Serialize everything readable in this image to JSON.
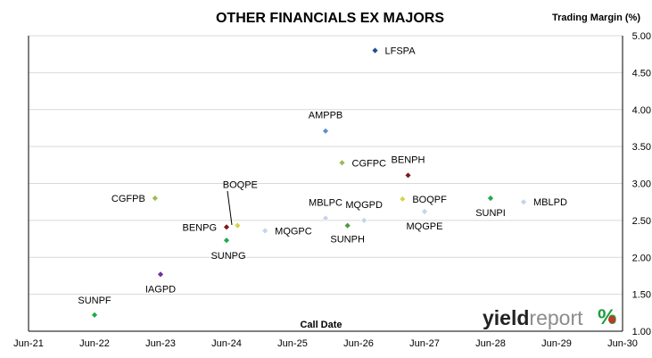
{
  "chart_data": {
    "type": "scatter",
    "title": "OTHER FINANCIALS EX MAJORS",
    "ylabel": "Trading Margin (%)",
    "xlabel": "Call Date",
    "x_ticks": [
      "Jun-21",
      "Jun-22",
      "Jun-23",
      "Jun-24",
      "Jun-25",
      "Jun-26",
      "Jun-27",
      "Jun-28",
      "Jun-29",
      "Jun-30"
    ],
    "xlim": [
      "2021-06",
      "2030-06"
    ],
    "ylim": [
      1.0,
      5.0
    ],
    "y_ticks": [
      "1.00",
      "1.50",
      "2.00",
      "2.50",
      "3.00",
      "3.50",
      "4.00",
      "4.50",
      "5.00"
    ],
    "grid": "horizontal",
    "legend": "none",
    "points": [
      {
        "name": "SUNPF",
        "x": "2022-06",
        "y": 1.22,
        "color": "#1faa4b"
      },
      {
        "name": "IAGPD",
        "x": "2023-06",
        "y": 1.77,
        "color": "#7030a0"
      },
      {
        "name": "CGFPB",
        "x": "2023-05",
        "y": 2.8,
        "color": "#9bbb59"
      },
      {
        "name": "BENPG",
        "x": "2024-06",
        "y": 2.41,
        "color": "#7b1c1c"
      },
      {
        "name": "SUNPG",
        "x": "2024-06",
        "y": 2.23,
        "color": "#1faa4b"
      },
      {
        "name": "BOQPE",
        "x": "2024-08",
        "y": 2.43,
        "color": "#d4d44a"
      },
      {
        "name": "MQGPC",
        "x": "2025-01",
        "y": 2.36,
        "color": "#c5d3ef"
      },
      {
        "name": "MBLPC",
        "x": "2025-12",
        "y": 2.53,
        "color": "#c5d3ef"
      },
      {
        "name": "AMPPB",
        "x": "2025-12",
        "y": 3.71,
        "color": "#5b8fd1"
      },
      {
        "name": "SUNPH",
        "x": "2026-04",
        "y": 2.43,
        "color": "#4f9a3c"
      },
      {
        "name": "MQGPD",
        "x": "2026-07",
        "y": 2.5,
        "color": "#c5d3ef"
      },
      {
        "name": "CGFPC",
        "x": "2026-03",
        "y": 3.28,
        "color": "#9bbb59"
      },
      {
        "name": "LFSPA",
        "x": "2026-09",
        "y": 4.8,
        "color": "#1f4e8c"
      },
      {
        "name": "BOQPF",
        "x": "2027-02",
        "y": 2.79,
        "color": "#d4d44a"
      },
      {
        "name": "BENPH",
        "x": "2027-03",
        "y": 3.11,
        "color": "#7b1c1c"
      },
      {
        "name": "MQGPE",
        "x": "2027-06",
        "y": 2.62,
        "color": "#c5d3ef"
      },
      {
        "name": "SUNPI",
        "x": "2028-06",
        "y": 2.8,
        "color": "#1faa4b"
      },
      {
        "name": "MBLPD",
        "x": "2028-12",
        "y": 2.75,
        "color": "#c5d3ef"
      }
    ]
  },
  "logo": {
    "text_dark": "yield",
    "text_light": "report",
    "symbol": "%"
  }
}
